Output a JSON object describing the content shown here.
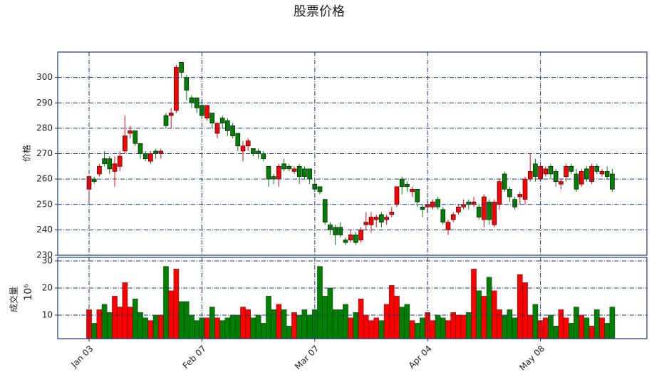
{
  "chart_data": {
    "type": "candlestick",
    "title": "股票价格",
    "ylabel": "价格",
    "y2label": "成交量",
    "y2_offset_label": "10⁶",
    "categories": [
      "Jan 03",
      null,
      null,
      null,
      null,
      null,
      null,
      null,
      null,
      null,
      null,
      null,
      null,
      null,
      null,
      null,
      null,
      null,
      null,
      null,
      null,
      null,
      "Feb 07",
      null,
      null,
      null,
      null,
      null,
      null,
      null,
      null,
      null,
      null,
      null,
      null,
      null,
      null,
      null,
      null,
      null,
      null,
      null,
      null,
      null,
      "Mar 07",
      null,
      null,
      null,
      null,
      null,
      null,
      null,
      null,
      null,
      null,
      null,
      null,
      null,
      null,
      null,
      null,
      null,
      null,
      null,
      null,
      null,
      "Apr 04",
      null,
      null,
      null,
      null,
      null,
      null,
      null,
      null,
      null,
      null,
      null,
      null,
      null,
      null,
      null,
      null,
      null,
      null,
      null,
      null,
      null,
      "May 08",
      null,
      null,
      null,
      null,
      null,
      null,
      null,
      null,
      null,
      null,
      null,
      null,
      null,
      null
    ],
    "open": [
      256,
      260,
      262,
      268,
      268,
      263,
      265,
      271,
      278,
      279,
      274,
      270,
      267,
      271,
      270,
      285,
      285,
      287,
      306,
      300,
      292,
      292,
      289,
      284,
      286,
      278,
      284,
      283,
      281,
      278,
      271,
      273,
      272,
      271,
      270,
      265,
      261,
      260,
      266,
      265,
      263,
      265,
      264,
      264,
      258,
      257,
      252,
      242,
      241,
      241,
      236,
      236,
      238,
      236,
      242,
      242,
      244,
      246,
      244,
      246,
      250,
      260,
      258,
      255,
      256,
      249,
      249,
      249,
      252,
      248,
      240,
      244,
      247,
      249,
      251,
      250,
      249,
      244,
      251,
      242,
      250,
      262,
      256,
      252,
      253,
      252,
      260,
      266,
      260,
      262,
      265,
      263,
      258,
      261,
      265,
      262,
      258,
      264,
      259,
      265,
      262,
      263,
      262
    ],
    "high": [
      261,
      261,
      266,
      271,
      269,
      269,
      271,
      285,
      281,
      279,
      274,
      271,
      271,
      272,
      272,
      286,
      288,
      305,
      306,
      301,
      293,
      292,
      291,
      289,
      286,
      282,
      285,
      284,
      282,
      278,
      275,
      276,
      272,
      272,
      271,
      265,
      262,
      266,
      268,
      266,
      265,
      266,
      265,
      264,
      259,
      257,
      252,
      243,
      242,
      243,
      237,
      240,
      239,
      241,
      247,
      247,
      246,
      247,
      246,
      249,
      257,
      261,
      259,
      257,
      256,
      250,
      252,
      252,
      253,
      249,
      244,
      247,
      250,
      252,
      252,
      253,
      250,
      254,
      252,
      252,
      260,
      263,
      257,
      253,
      255,
      261,
      270,
      268,
      266,
      265,
      266,
      264,
      260,
      266,
      266,
      264,
      264,
      265,
      266,
      266,
      264,
      265,
      264
    ],
    "low": [
      251,
      258,
      261,
      265,
      262,
      257,
      263,
      270,
      276,
      273,
      268,
      267,
      266,
      268,
      268,
      280,
      280,
      286,
      300,
      291,
      288,
      286,
      284,
      283,
      280,
      276,
      280,
      277,
      276,
      271,
      267,
      271,
      269,
      268,
      267,
      257,
      258,
      257,
      263,
      263,
      262,
      258,
      260,
      258,
      255,
      254,
      242,
      238,
      234,
      237,
      234,
      235,
      234,
      235,
      240,
      239,
      241,
      241,
      242,
      245,
      249,
      254,
      255,
      253,
      249,
      245,
      247,
      248,
      248,
      242,
      238,
      243,
      246,
      248,
      248,
      249,
      244,
      241,
      242,
      241,
      248,
      255,
      251,
      248,
      250,
      250,
      259,
      259,
      259,
      261,
      260,
      257,
      256,
      259,
      262,
      255,
      257,
      259,
      258,
      262,
      261,
      260,
      255
    ],
    "close": [
      261,
      259,
      265,
      266,
      264,
      266,
      269,
      277,
      279,
      274,
      270,
      268,
      270,
      270,
      271,
      281,
      286,
      304,
      302,
      295,
      290,
      288,
      285,
      289,
      282,
      282,
      282,
      279,
      277,
      273,
      273,
      275,
      270,
      270,
      268,
      260,
      260,
      265,
      264,
      264,
      264,
      261,
      261,
      260,
      256,
      255,
      243,
      240,
      238,
      238,
      235,
      238,
      235,
      240,
      243,
      245,
      245,
      243,
      245,
      247,
      257,
      257,
      257,
      256,
      251,
      248,
      250,
      251,
      249,
      243,
      243,
      246,
      249,
      250,
      250,
      251,
      245,
      253,
      244,
      251,
      259,
      256,
      253,
      249,
      254,
      260,
      263,
      261,
      265,
      264,
      262,
      259,
      259,
      265,
      263,
      256,
      263,
      260,
      265,
      263,
      263,
      261,
      256
    ],
    "volume": [
      12,
      7,
      12,
      14,
      11,
      17,
      13,
      22,
      13,
      16,
      11,
      9,
      8,
      10,
      10,
      28,
      19,
      27,
      15,
      15,
      10,
      8,
      9,
      9,
      13,
      9,
      8,
      9,
      10,
      10,
      13,
      12,
      9,
      10,
      7,
      17,
      12,
      14,
      12,
      6,
      11,
      10,
      12,
      10,
      12,
      28,
      17,
      20,
      12,
      12,
      14,
      9,
      11,
      16,
      10,
      8,
      9,
      8,
      14,
      21,
      17,
      13,
      14,
      8,
      7,
      9,
      11,
      8,
      10,
      9,
      8,
      11,
      10,
      10,
      11,
      27,
      19,
      17,
      24,
      19,
      12,
      10,
      12,
      9,
      25,
      22,
      10,
      14,
      8,
      9,
      10,
      6,
      12,
      9,
      7,
      13,
      10,
      9,
      6,
      12,
      9,
      7,
      13
    ],
    "up_color": "#ff0000",
    "down_color": "#008000",
    "edge_color": "#000000",
    "ylim": [
      230,
      310
    ],
    "yticks": [
      230,
      240,
      250,
      260,
      270,
      280,
      290,
      300
    ],
    "y2lim": [
      1.3,
      31.3
    ],
    "y2ticks": [
      10,
      20,
      30
    ],
    "grid": true,
    "grid_color": "#1f3a78"
  }
}
